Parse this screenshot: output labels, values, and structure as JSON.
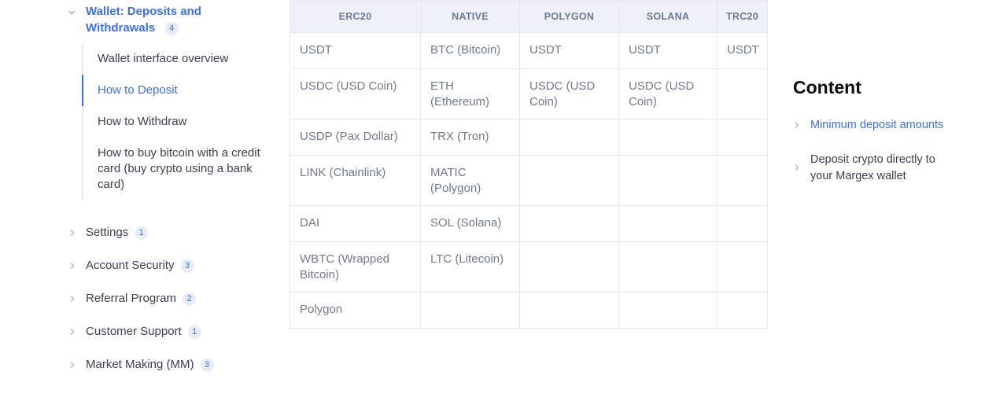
{
  "colors": {
    "accent_blue": "#3d6fe0",
    "text_dark": "#3c4150",
    "table_header_bg": "#eef1f8",
    "table_header_text": "#6e7a94",
    "table_border": "#e4e7ee",
    "table_cell_text": "#707a8a",
    "badge_bg": "#e7edf8",
    "chevron_gray": "#b9c1ce"
  },
  "sidebar": {
    "expanded_group": {
      "label": "Wallet: Deposits and Withdrawals",
      "badge": "4",
      "expanded": true,
      "items": [
        {
          "label": "Wallet interface overview",
          "active": false
        },
        {
          "label": "How to Deposit",
          "active": true
        },
        {
          "label": "How to Withdraw",
          "active": false
        },
        {
          "label": "How to buy bitcoin with a credit card (buy crypto using a bank card)",
          "active": false
        }
      ]
    },
    "collapsed_groups": [
      {
        "label": "Settings",
        "badge": "1"
      },
      {
        "label": "Account Security",
        "badge": "3"
      },
      {
        "label": "Referral Program",
        "badge": "2"
      },
      {
        "label": "Customer Support",
        "badge": "1"
      },
      {
        "label": "Market Making (MM)",
        "badge": "3"
      }
    ]
  },
  "table": {
    "headers": [
      "ERC20",
      "NATIVE",
      "POLYGON",
      "SOLANA",
      "TRC20"
    ],
    "rows": [
      [
        "USDT",
        "BTC (Bitcoin)",
        "USDT",
        "USDT",
        "USDT"
      ],
      [
        "USDC (USD Coin)",
        "ETH (Ethereum)",
        "USDC (USD Coin)",
        "USDC (USD Coin)",
        ""
      ],
      [
        "USDP (Pax Dollar)",
        "TRX (Tron)",
        "",
        "",
        ""
      ],
      [
        "LINK (Chainlink)",
        "MATIC (Polygon)",
        "",
        "",
        ""
      ],
      [
        "DAI",
        "SOL (Solana)",
        "",
        "",
        ""
      ],
      [
        "WBTC (Wrapped Bitcoin)",
        "LTC (Litecoin)",
        "",
        "",
        ""
      ],
      [
        "Polygon",
        "",
        "",
        "",
        ""
      ]
    ]
  },
  "content_panel": {
    "title": "Content",
    "links": [
      {
        "label": "Minimum deposit amounts",
        "active": true
      },
      {
        "label": "Deposit crypto directly to your Margex wallet",
        "active": false
      }
    ]
  }
}
